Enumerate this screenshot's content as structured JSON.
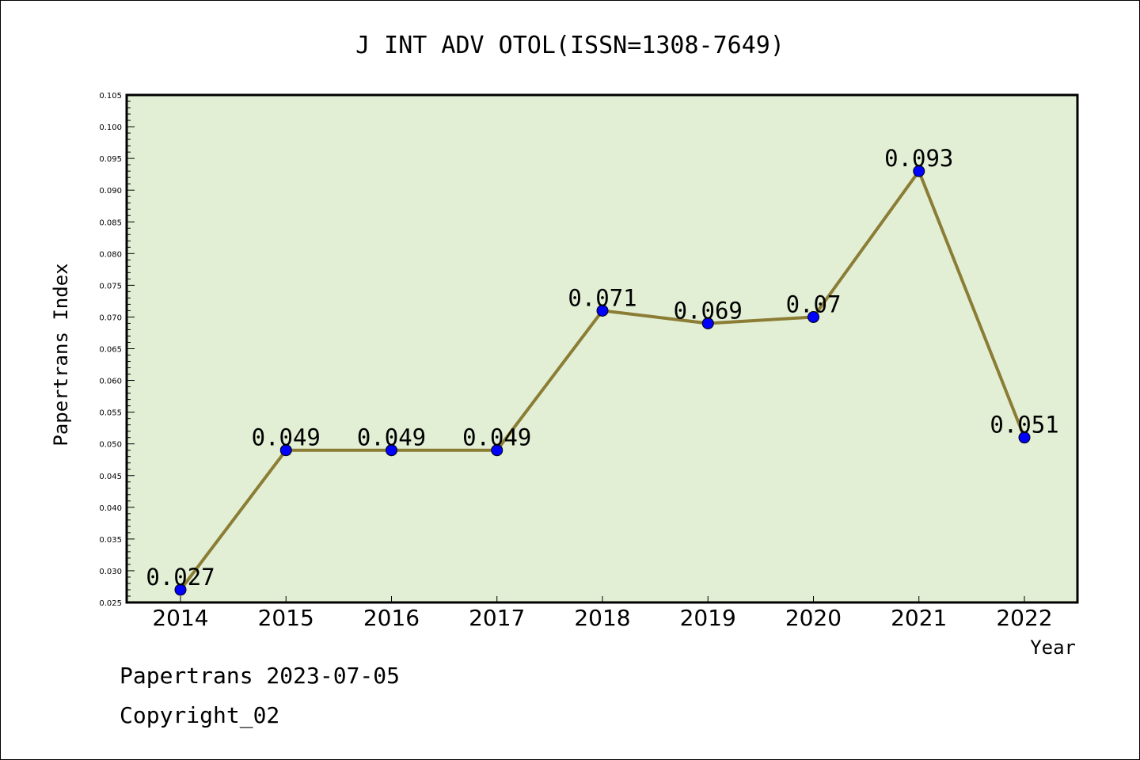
{
  "chart_data": {
    "type": "line",
    "title": "J INT ADV OTOL(ISSN=1308-7649)",
    "xlabel": "Year",
    "ylabel": "Papertrans Index",
    "categories": [
      "2014",
      "2015",
      "2016",
      "2017",
      "2018",
      "2019",
      "2020",
      "2021",
      "2022"
    ],
    "series": [
      {
        "values": [
          0.027,
          0.049,
          0.049,
          0.049,
          0.071,
          0.069,
          0.07,
          0.093,
          0.051
        ],
        "labels": [
          "0.027",
          "0.049",
          "0.049",
          "0.049",
          "0.071",
          "0.069",
          "0.07",
          "0.093",
          "0.051"
        ]
      }
    ],
    "ylim": [
      0.025,
      0.105
    ],
    "yticks": [
      "0.025",
      "0.030",
      "0.035",
      "0.040",
      "0.045",
      "0.050",
      "0.055",
      "0.060",
      "0.065",
      "0.070",
      "0.075",
      "0.080",
      "0.085",
      "0.090",
      "0.095",
      "0.100",
      "0.105"
    ],
    "grid": false,
    "colors": {
      "plot_background": "#e2efd5",
      "line": "#8b7d35",
      "marker": "#0000ff"
    }
  },
  "footer": {
    "line1": "Papertrans 2023-07-05",
    "line2": "Copyright_02"
  }
}
